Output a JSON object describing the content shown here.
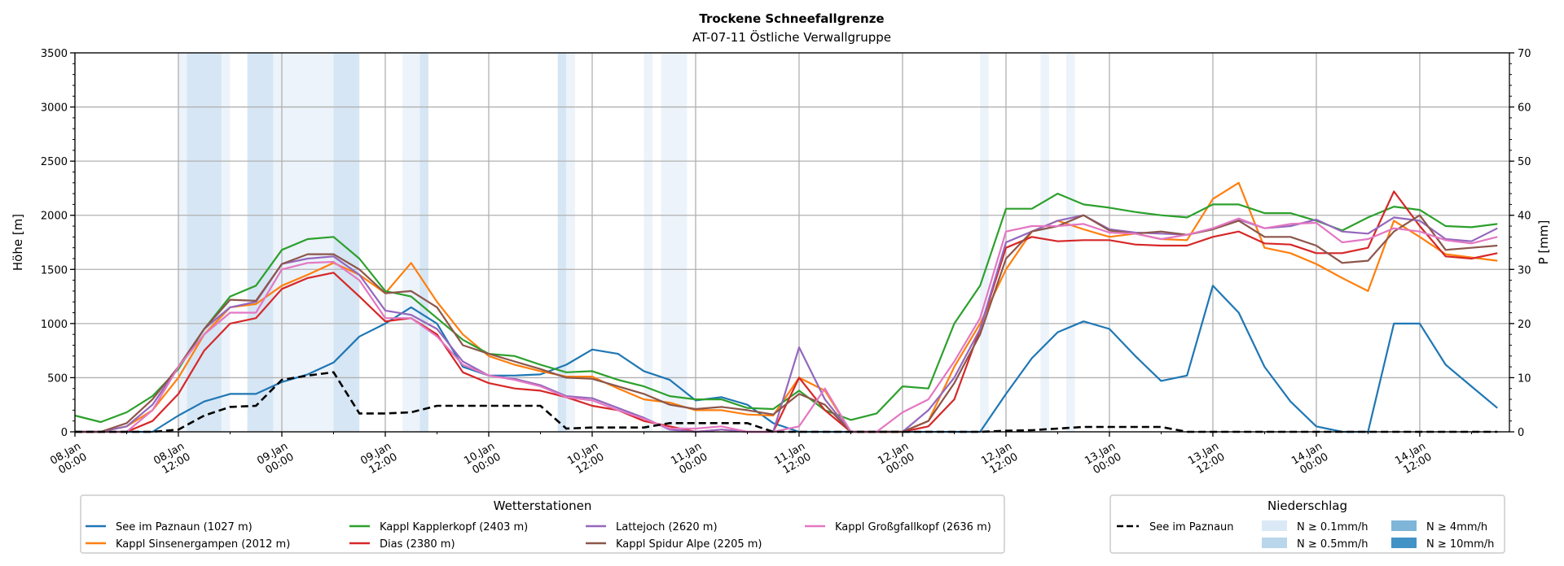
{
  "chart_data": {
    "type": "line",
    "title": "Trockene Schneefallgrenze",
    "subtitle": "AT-07-11 Östliche Verwallgruppe",
    "ylabel": "Höhe [m]",
    "y2label": "P [mm]",
    "ylim": [
      0,
      3500
    ],
    "y2lim": [
      0,
      70
    ],
    "yticks": [
      0,
      500,
      1000,
      1500,
      2000,
      2500,
      3000,
      3500
    ],
    "y2ticks": [
      0,
      10,
      20,
      30,
      40,
      50,
      60,
      70
    ],
    "xlim": [
      "08.Jan 00:00",
      "14.Jan 22:24"
    ],
    "xticks": [
      {
        "date": "08.Jan",
        "time": "00:00"
      },
      {
        "date": "08.Jan",
        "time": "12:00"
      },
      {
        "date": "09.Jan",
        "time": "00:00"
      },
      {
        "date": "09.Jan",
        "time": "12:00"
      },
      {
        "date": "10.Jan",
        "time": "00:00"
      },
      {
        "date": "10.Jan",
        "time": "12:00"
      },
      {
        "date": "11.Jan",
        "time": "00:00"
      },
      {
        "date": "11.Jan",
        "time": "12:00"
      },
      {
        "date": "12.Jan",
        "time": "00:00"
      },
      {
        "date": "12.Jan",
        "time": "12:00"
      },
      {
        "date": "13.Jan",
        "time": "00:00"
      },
      {
        "date": "13.Jan",
        "time": "12:00"
      },
      {
        "date": "14.Jan",
        "time": "00:00"
      },
      {
        "date": "14.Jan",
        "time": "12:00"
      }
    ],
    "grid": true,
    "x": [
      "08.Jan 00:00",
      "08.Jan 03:00",
      "08.Jan 06:00",
      "08.Jan 09:00",
      "08.Jan 12:00",
      "08.Jan 15:00",
      "08.Jan 18:00",
      "08.Jan 21:00",
      "09.Jan 00:00",
      "09.Jan 03:00",
      "09.Jan 06:00",
      "09.Jan 09:00",
      "09.Jan 12:00",
      "09.Jan 15:00",
      "09.Jan 18:00",
      "09.Jan 21:00",
      "10.Jan 00:00",
      "10.Jan 03:00",
      "10.Jan 06:00",
      "10.Jan 09:00",
      "10.Jan 12:00",
      "10.Jan 15:00",
      "10.Jan 18:00",
      "10.Jan 21:00",
      "11.Jan 00:00",
      "11.Jan 03:00",
      "11.Jan 06:00",
      "11.Jan 09:00",
      "11.Jan 12:00",
      "11.Jan 15:00",
      "11.Jan 18:00",
      "11.Jan 21:00",
      "12.Jan 00:00",
      "12.Jan 03:00",
      "12.Jan 06:00",
      "12.Jan 09:00",
      "12.Jan 12:00",
      "12.Jan 15:00",
      "12.Jan 18:00",
      "12.Jan 21:00",
      "13.Jan 00:00",
      "13.Jan 03:00",
      "13.Jan 06:00",
      "13.Jan 09:00",
      "13.Jan 12:00",
      "13.Jan 15:00",
      "13.Jan 18:00",
      "13.Jan 21:00",
      "14.Jan 00:00",
      "14.Jan 03:00",
      "14.Jan 06:00",
      "14.Jan 09:00",
      "14.Jan 12:00",
      "14.Jan 15:00",
      "14.Jan 18:00",
      "14.Jan 21:00"
    ],
    "series": [
      {
        "name": "See im Paznaun (1027 m)",
        "color": "#1f77b4",
        "values": [
          0,
          0,
          0,
          0,
          150,
          280,
          350,
          350,
          460,
          530,
          640,
          880,
          1000,
          1150,
          1000,
          600,
          520,
          520,
          530,
          620,
          760,
          720,
          560,
          480,
          290,
          320,
          250,
          80,
          0,
          0,
          0,
          0,
          0,
          0,
          0,
          0,
          350,
          680,
          920,
          1020,
          950,
          700,
          470,
          520,
          1350,
          1100,
          600,
          280,
          50,
          0,
          0,
          1000,
          1000,
          620,
          420,
          220
        ]
      },
      {
        "name": "Kappl Sinsenergampen (2012 m)",
        "color": "#ff7f0e",
        "values": [
          0,
          0,
          50,
          200,
          500,
          900,
          1150,
          1180,
          1350,
          1450,
          1560,
          1450,
          1280,
          1560,
          1200,
          900,
          700,
          620,
          560,
          510,
          510,
          400,
          300,
          270,
          200,
          200,
          160,
          150,
          500,
          380,
          0,
          0,
          0,
          100,
          600,
          1000,
          1500,
          1850,
          1950,
          1870,
          1800,
          1830,
          1780,
          1770,
          2150,
          2300,
          1700,
          1650,
          1550,
          1420,
          1300,
          1950,
          1800,
          1640,
          1610,
          1580
        ]
      },
      {
        "name": "Kappl Kapplerkopf (2403 m)",
        "color": "#2ca02c",
        "values": [
          150,
          90,
          180,
          330,
          580,
          950,
          1250,
          1350,
          1680,
          1780,
          1800,
          1600,
          1300,
          1250,
          1050,
          850,
          720,
          700,
          620,
          550,
          560,
          480,
          420,
          330,
          300,
          300,
          220,
          210,
          380,
          200,
          110,
          170,
          420,
          400,
          1000,
          1350,
          2060,
          2060,
          2200,
          2100,
          2070,
          2030,
          2000,
          1980,
          2100,
          2100,
          2020,
          2020,
          1950,
          1860,
          1980,
          2080,
          2050,
          1900,
          1890,
          1920
        ]
      },
      {
        "name": "Dias (2380 m)",
        "color": "#d62728",
        "values": [
          0,
          0,
          0,
          100,
          350,
          750,
          1000,
          1050,
          1320,
          1420,
          1470,
          1250,
          1020,
          1050,
          900,
          550,
          450,
          400,
          380,
          320,
          240,
          200,
          100,
          50,
          0,
          20,
          0,
          0,
          500,
          200,
          0,
          0,
          0,
          50,
          300,
          950,
          1700,
          1800,
          1760,
          1770,
          1770,
          1730,
          1720,
          1720,
          1800,
          1850,
          1740,
          1730,
          1650,
          1650,
          1700,
          2220,
          1900,
          1620,
          1600,
          1650
        ]
      },
      {
        "name": "Lattejoch (2620 m)",
        "color": "#9467bd",
        "values": [
          0,
          0,
          50,
          250,
          600,
          950,
          1150,
          1200,
          1550,
          1600,
          1620,
          1450,
          1120,
          1080,
          950,
          650,
          520,
          490,
          430,
          330,
          310,
          220,
          130,
          20,
          0,
          20,
          0,
          0,
          780,
          300,
          0,
          0,
          0,
          200,
          500,
          950,
          1750,
          1850,
          1950,
          2000,
          1870,
          1840,
          1830,
          1820,
          1870,
          1960,
          1880,
          1900,
          1960,
          1850,
          1830,
          1980,
          1950,
          1780,
          1760,
          1880
        ]
      },
      {
        "name": "Kappl Spidur Alpe (2205 m)",
        "color": "#8c564b",
        "values": [
          0,
          0,
          80,
          300,
          600,
          950,
          1220,
          1210,
          1550,
          1640,
          1640,
          1500,
          1280,
          1300,
          1150,
          800,
          720,
          650,
          580,
          500,
          490,
          420,
          350,
          250,
          210,
          230,
          200,
          160,
          350,
          250,
          0,
          0,
          0,
          100,
          450,
          900,
          1600,
          1850,
          1900,
          2000,
          1860,
          1830,
          1850,
          1820,
          1870,
          1950,
          1800,
          1800,
          1720,
          1560,
          1580,
          1850,
          2000,
          1680,
          1700,
          1720
        ]
      },
      {
        "name": "Kappl Großgfallkopf (2636 m)",
        "color": "#e377c2",
        "values": [
          0,
          0,
          0,
          200,
          600,
          900,
          1100,
          1100,
          1500,
          1560,
          1570,
          1400,
          1050,
          1050,
          880,
          620,
          520,
          480,
          420,
          320,
          290,
          200,
          120,
          30,
          30,
          50,
          0,
          0,
          50,
          400,
          0,
          0,
          180,
          300,
          650,
          1050,
          1850,
          1900,
          1900,
          1920,
          1840,
          1830,
          1780,
          1820,
          1880,
          1970,
          1880,
          1920,
          1930,
          1750,
          1780,
          1880,
          1850,
          1770,
          1740,
          1800
        ]
      }
    ],
    "precipitation": {
      "name": "See im Paznaun",
      "axis": "right",
      "color": "#000000",
      "values": [
        0,
        0,
        0,
        0,
        0.4,
        3,
        4.6,
        4.8,
        9.6,
        10.4,
        11,
        3.4,
        3.4,
        3.6,
        4.8,
        4.8,
        4.8,
        4.8,
        4.8,
        0.6,
        0.8,
        0.8,
        0.8,
        1.6,
        1.6,
        1.6,
        1.6,
        0,
        0,
        0,
        0,
        0,
        0,
        0,
        0,
        0,
        0.2,
        0.3,
        0.6,
        0.9,
        0.9,
        0.9,
        0.9,
        0,
        0,
        0,
        0,
        0,
        0,
        0,
        0,
        0,
        0,
        0,
        0,
        0
      ]
    },
    "precip_intensity_bands": [
      {
        "from": "08.Jan 12:00",
        "to": "08.Jan 13:00",
        "level": "0.1"
      },
      {
        "from": "08.Jan 13:00",
        "to": "08.Jan 17:00",
        "level": "0.5"
      },
      {
        "from": "08.Jan 17:00",
        "to": "08.Jan 18:00",
        "level": "0.1"
      },
      {
        "from": "08.Jan 20:00",
        "to": "08.Jan 23:00",
        "level": "0.5"
      },
      {
        "from": "08.Jan 23:00",
        "to": "09.Jan 06:00",
        "level": "0.1"
      },
      {
        "from": "09.Jan 06:00",
        "to": "09.Jan 09:00",
        "level": "0.5"
      },
      {
        "from": "09.Jan 14:00",
        "to": "09.Jan 16:00",
        "level": "0.1"
      },
      {
        "from": "09.Jan 16:00",
        "to": "09.Jan 17:00",
        "level": "0.5"
      },
      {
        "from": "10.Jan 08:00",
        "to": "10.Jan 09:00",
        "level": "0.5"
      },
      {
        "from": "10.Jan 09:00",
        "to": "10.Jan 10:00",
        "level": "0.1"
      },
      {
        "from": "10.Jan 18:00",
        "to": "10.Jan 19:00",
        "level": "0.1"
      },
      {
        "from": "10.Jan 20:00",
        "to": "10.Jan 23:00",
        "level": "0.1"
      },
      {
        "from": "12.Jan 09:00",
        "to": "12.Jan 10:00",
        "level": "0.1"
      },
      {
        "from": "12.Jan 16:00",
        "to": "12.Jan 17:00",
        "level": "0.1"
      },
      {
        "from": "12.Jan 19:00",
        "to": "12.Jan 20:00",
        "level": "0.1"
      }
    ],
    "legend_stations": {
      "title": "Wetterstationen",
      "placement": "bottom-left"
    },
    "legend_precip": {
      "title": "Niederschlag",
      "placement": "bottom-right",
      "line_label": "See im Paznaun",
      "levels": [
        {
          "key": "0.1",
          "label": "N ≥ 0.1mm/h",
          "color": "#dbe9f6"
        },
        {
          "key": "0.5",
          "label": "N ≥ 0.5mm/h",
          "color": "#bad6eb"
        },
        {
          "key": "4",
          "label": "N ≥ 4mm/h",
          "color": "#7fb5d9"
        },
        {
          "key": "10",
          "label": "N ≥ 10mm/h",
          "color": "#4292c6"
        }
      ],
      "band_colors": {
        "0.1": "#ecf3fa",
        "0.5": "#d6e6f4",
        "4": "#a9cde6",
        "10": "#6aa6d2"
      }
    }
  }
}
